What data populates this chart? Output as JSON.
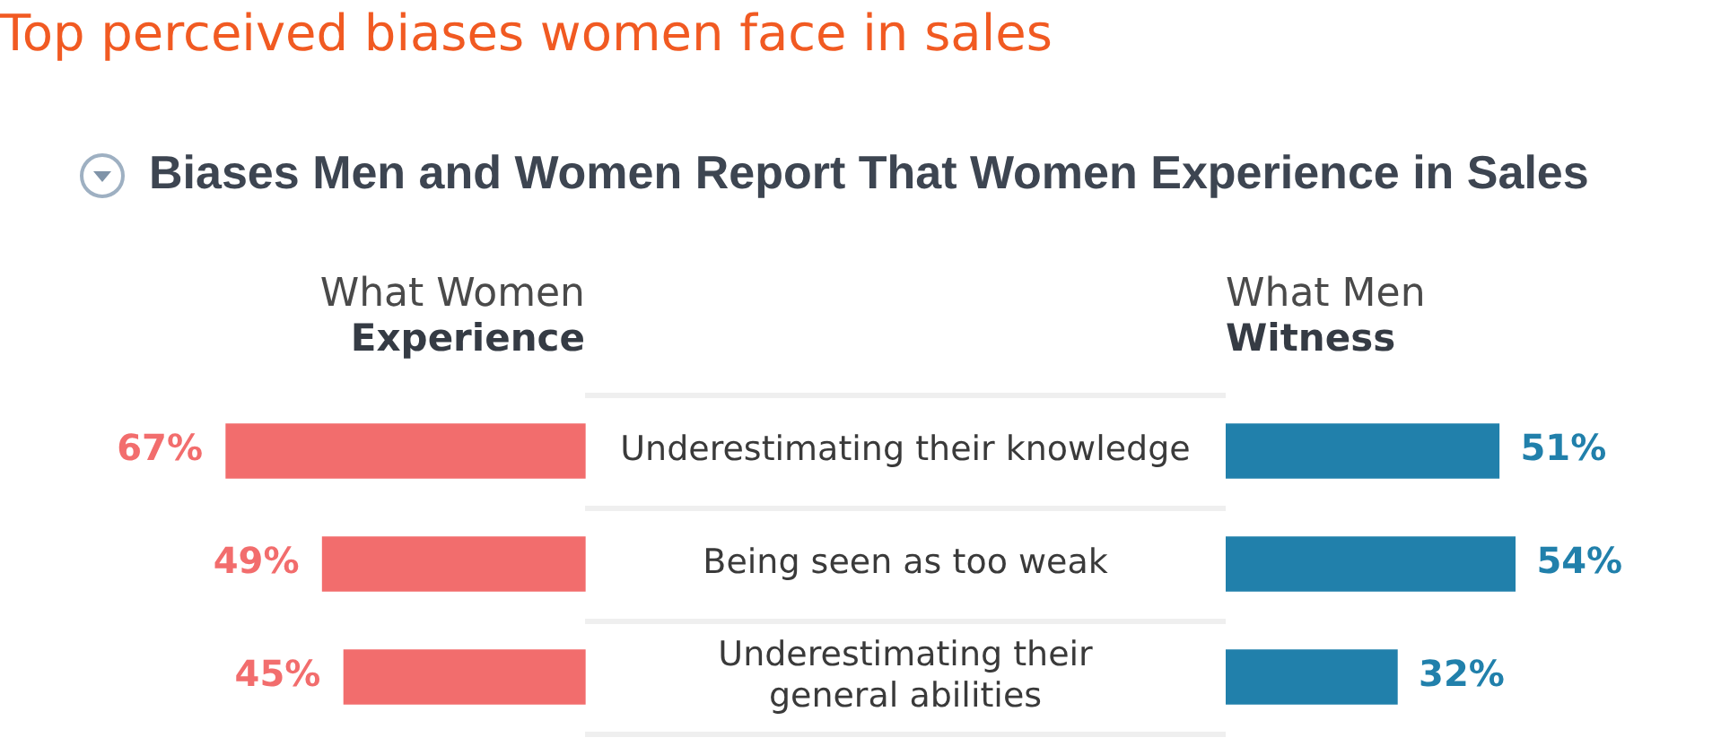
{
  "chart_data": [
    {
      "type": "bar",
      "orientation": "horizontal",
      "title": "Top perceived biases women face in sales",
      "subtitle": "Biases Men and Women Report That Women Experience in Sales",
      "tick_labels": "y",
      "categories": [
        "Underestimating their knowledge",
        "Being seen as too weak",
        "Underestimating their general abilities"
      ],
      "series": [
        {
          "name": "What Women Experience",
          "color": "#f26d6d",
          "values": [
            67,
            49,
            45
          ],
          "value_labels": [
            "67%",
            "49%",
            "45%"
          ]
        }
      ]
    },
    {
      "type": "bar",
      "orientation": "horizontal",
      "categories": [
        null,
        null,
        null
      ],
      "series": [
        {
          "name": "What Men Witness",
          "color": "#2180ab",
          "values": [
            51,
            54,
            32
          ],
          "value_labels": [
            "51%",
            "54%",
            "32%"
          ]
        }
      ]
    }
  ]
}
